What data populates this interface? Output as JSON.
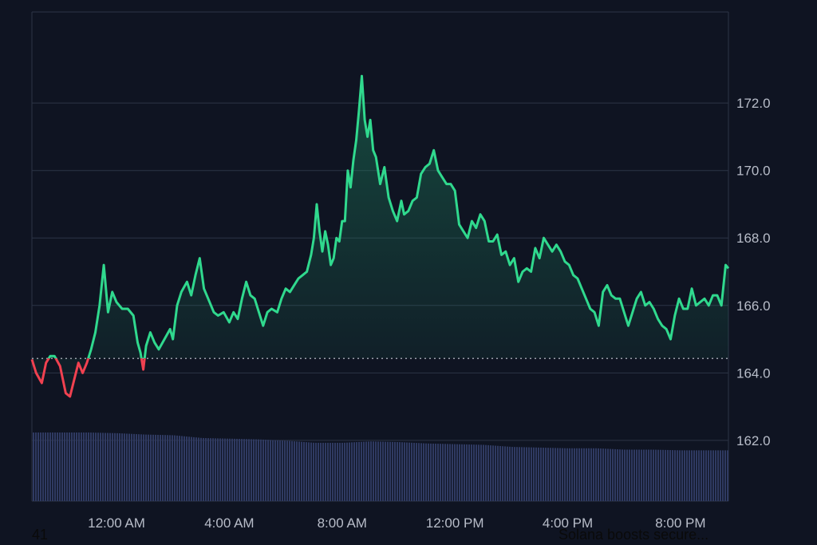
{
  "colors": {
    "background": "#0f1422",
    "grid": "#2c3446",
    "up_line": "#30d98e",
    "down_line": "#f04150",
    "volume": "#2f3a62",
    "tick_text": "#b8bdc9",
    "baseline": "#c8ccd6"
  },
  "chart_data": {
    "type": "area",
    "y_ticks": [
      "162.0",
      "164.0",
      "166.0",
      "168.0",
      "170.0",
      "172.0"
    ],
    "x_ticks": [
      {
        "label": "12:00 AM",
        "hour": 0
      },
      {
        "label": "4:00 AM",
        "hour": 4
      },
      {
        "label": "8:00 AM",
        "hour": 8
      },
      {
        "label": "12:00 PM",
        "hour": 12
      },
      {
        "label": "4:00 PM",
        "hour": 16
      },
      {
        "label": "8:00 PM",
        "hour": 20
      }
    ],
    "ylim": [
      160.2,
      174.7
    ],
    "xlim": [
      -3.0,
      21.7
    ],
    "baseline_price": 164.43,
    "series": [
      {
        "points": [
          [
            -3.0,
            164.4
          ],
          [
            -2.85,
            164.0
          ],
          [
            -2.65,
            163.7
          ],
          [
            -2.5,
            164.3
          ],
          [
            -2.35,
            164.5
          ],
          [
            -2.2,
            164.5
          ],
          [
            -2.0,
            164.2
          ],
          [
            -1.8,
            163.4
          ],
          [
            -1.65,
            163.3
          ],
          [
            -1.5,
            163.8
          ],
          [
            -1.35,
            164.3
          ],
          [
            -1.2,
            164.0
          ],
          [
            -1.05,
            164.3
          ],
          [
            -0.9,
            164.7
          ],
          [
            -0.75,
            165.2
          ],
          [
            -0.6,
            166.0
          ],
          [
            -0.45,
            167.2
          ],
          [
            -0.3,
            165.8
          ],
          [
            -0.15,
            166.4
          ],
          [
            0.0,
            166.1
          ],
          [
            0.2,
            165.9
          ],
          [
            0.4,
            165.9
          ],
          [
            0.6,
            165.7
          ],
          [
            0.75,
            164.9
          ],
          [
            0.85,
            164.6
          ],
          [
            0.95,
            164.1
          ],
          [
            1.05,
            164.8
          ],
          [
            1.2,
            165.2
          ],
          [
            1.35,
            164.9
          ],
          [
            1.5,
            164.7
          ],
          [
            1.7,
            165.0
          ],
          [
            1.9,
            165.3
          ],
          [
            2.0,
            165.0
          ],
          [
            2.15,
            166.0
          ],
          [
            2.3,
            166.4
          ],
          [
            2.5,
            166.7
          ],
          [
            2.65,
            166.3
          ],
          [
            2.8,
            166.9
          ],
          [
            2.95,
            167.4
          ],
          [
            3.1,
            166.5
          ],
          [
            3.3,
            166.1
          ],
          [
            3.45,
            165.8
          ],
          [
            3.6,
            165.7
          ],
          [
            3.8,
            165.8
          ],
          [
            4.0,
            165.5
          ],
          [
            4.15,
            165.8
          ],
          [
            4.3,
            165.6
          ],
          [
            4.45,
            166.2
          ],
          [
            4.6,
            166.7
          ],
          [
            4.75,
            166.3
          ],
          [
            4.9,
            166.2
          ],
          [
            5.05,
            165.8
          ],
          [
            5.2,
            165.4
          ],
          [
            5.35,
            165.8
          ],
          [
            5.5,
            165.9
          ],
          [
            5.7,
            165.8
          ],
          [
            5.85,
            166.2
          ],
          [
            6.0,
            166.5
          ],
          [
            6.15,
            166.4
          ],
          [
            6.3,
            166.6
          ],
          [
            6.45,
            166.8
          ],
          [
            6.6,
            166.9
          ],
          [
            6.75,
            167.0
          ],
          [
            6.9,
            167.5
          ],
          [
            7.0,
            168.0
          ],
          [
            7.1,
            169.0
          ],
          [
            7.2,
            168.2
          ],
          [
            7.3,
            167.6
          ],
          [
            7.4,
            168.2
          ],
          [
            7.5,
            167.8
          ],
          [
            7.6,
            167.2
          ],
          [
            7.7,
            167.4
          ],
          [
            7.8,
            168.0
          ],
          [
            7.9,
            167.9
          ],
          [
            8.0,
            168.5
          ],
          [
            8.1,
            168.5
          ],
          [
            8.2,
            170.0
          ],
          [
            8.3,
            169.5
          ],
          [
            8.4,
            170.3
          ],
          [
            8.5,
            170.9
          ],
          [
            8.6,
            171.8
          ],
          [
            8.7,
            172.8
          ],
          [
            8.8,
            171.5
          ],
          [
            8.9,
            171.0
          ],
          [
            9.0,
            171.5
          ],
          [
            9.1,
            170.6
          ],
          [
            9.2,
            170.4
          ],
          [
            9.35,
            169.6
          ],
          [
            9.5,
            170.1
          ],
          [
            9.65,
            169.2
          ],
          [
            9.8,
            168.8
          ],
          [
            9.95,
            168.5
          ],
          [
            10.1,
            169.1
          ],
          [
            10.2,
            168.7
          ],
          [
            10.35,
            168.8
          ],
          [
            10.5,
            169.1
          ],
          [
            10.65,
            169.2
          ],
          [
            10.8,
            169.9
          ],
          [
            10.95,
            170.1
          ],
          [
            11.1,
            170.2
          ],
          [
            11.25,
            170.6
          ],
          [
            11.4,
            170.0
          ],
          [
            11.55,
            169.8
          ],
          [
            11.7,
            169.6
          ],
          [
            11.85,
            169.6
          ],
          [
            12.0,
            169.4
          ],
          [
            12.15,
            168.4
          ],
          [
            12.3,
            168.2
          ],
          [
            12.45,
            168.0
          ],
          [
            12.6,
            168.5
          ],
          [
            12.75,
            168.3
          ],
          [
            12.9,
            168.7
          ],
          [
            13.05,
            168.5
          ],
          [
            13.2,
            167.9
          ],
          [
            13.35,
            167.9
          ],
          [
            13.5,
            168.1
          ],
          [
            13.65,
            167.5
          ],
          [
            13.8,
            167.6
          ],
          [
            13.95,
            167.2
          ],
          [
            14.1,
            167.4
          ],
          [
            14.25,
            166.7
          ],
          [
            14.4,
            167.0
          ],
          [
            14.55,
            167.1
          ],
          [
            14.7,
            167.0
          ],
          [
            14.85,
            167.7
          ],
          [
            15.0,
            167.4
          ],
          [
            15.15,
            168.0
          ],
          [
            15.3,
            167.8
          ],
          [
            15.45,
            167.6
          ],
          [
            15.6,
            167.8
          ],
          [
            15.75,
            167.6
          ],
          [
            15.9,
            167.3
          ],
          [
            16.05,
            167.2
          ],
          [
            16.2,
            166.9
          ],
          [
            16.35,
            166.8
          ],
          [
            16.5,
            166.5
          ],
          [
            16.65,
            166.2
          ],
          [
            16.8,
            165.9
          ],
          [
            16.95,
            165.8
          ],
          [
            17.1,
            165.4
          ],
          [
            17.25,
            166.4
          ],
          [
            17.4,
            166.6
          ],
          [
            17.55,
            166.3
          ],
          [
            17.7,
            166.2
          ],
          [
            17.85,
            166.2
          ],
          [
            18.0,
            165.8
          ],
          [
            18.15,
            165.4
          ],
          [
            18.3,
            165.8
          ],
          [
            18.45,
            166.2
          ],
          [
            18.6,
            166.4
          ],
          [
            18.75,
            166.0
          ],
          [
            18.9,
            166.1
          ],
          [
            19.05,
            165.9
          ],
          [
            19.2,
            165.6
          ],
          [
            19.35,
            165.4
          ],
          [
            19.5,
            165.3
          ],
          [
            19.65,
            165.0
          ],
          [
            19.8,
            165.7
          ],
          [
            19.95,
            166.2
          ],
          [
            20.1,
            165.9
          ],
          [
            20.25,
            165.9
          ],
          [
            20.4,
            166.5
          ],
          [
            20.55,
            166.0
          ],
          [
            20.7,
            166.1
          ],
          [
            20.85,
            166.2
          ],
          [
            21.0,
            166.0
          ],
          [
            21.15,
            166.3
          ],
          [
            21.3,
            166.3
          ],
          [
            21.45,
            166.0
          ],
          [
            21.6,
            167.2
          ],
          [
            21.7,
            167.1
          ]
        ]
      }
    ],
    "volume": {
      "levels": [
        [
          -3.0,
          1.0
        ],
        [
          -1.0,
          1.0
        ],
        [
          0.0,
          0.99
        ],
        [
          1.0,
          0.97
        ],
        [
          2.0,
          0.96
        ],
        [
          3.0,
          0.92
        ],
        [
          4.0,
          0.91
        ],
        [
          5.0,
          0.9
        ],
        [
          6.0,
          0.88
        ],
        [
          7.0,
          0.85
        ],
        [
          8.0,
          0.85
        ],
        [
          9.0,
          0.87
        ],
        [
          10.0,
          0.86
        ],
        [
          11.0,
          0.84
        ],
        [
          12.0,
          0.83
        ],
        [
          13.0,
          0.82
        ],
        [
          14.0,
          0.79
        ],
        [
          15.0,
          0.78
        ],
        [
          16.0,
          0.77
        ],
        [
          17.0,
          0.77
        ],
        [
          18.0,
          0.75
        ],
        [
          19.0,
          0.75
        ],
        [
          20.0,
          0.74
        ],
        [
          21.7,
          0.74
        ]
      ]
    }
  },
  "footer": {
    "left_text": "41",
    "right_text": "Solana boosts secure..."
  }
}
